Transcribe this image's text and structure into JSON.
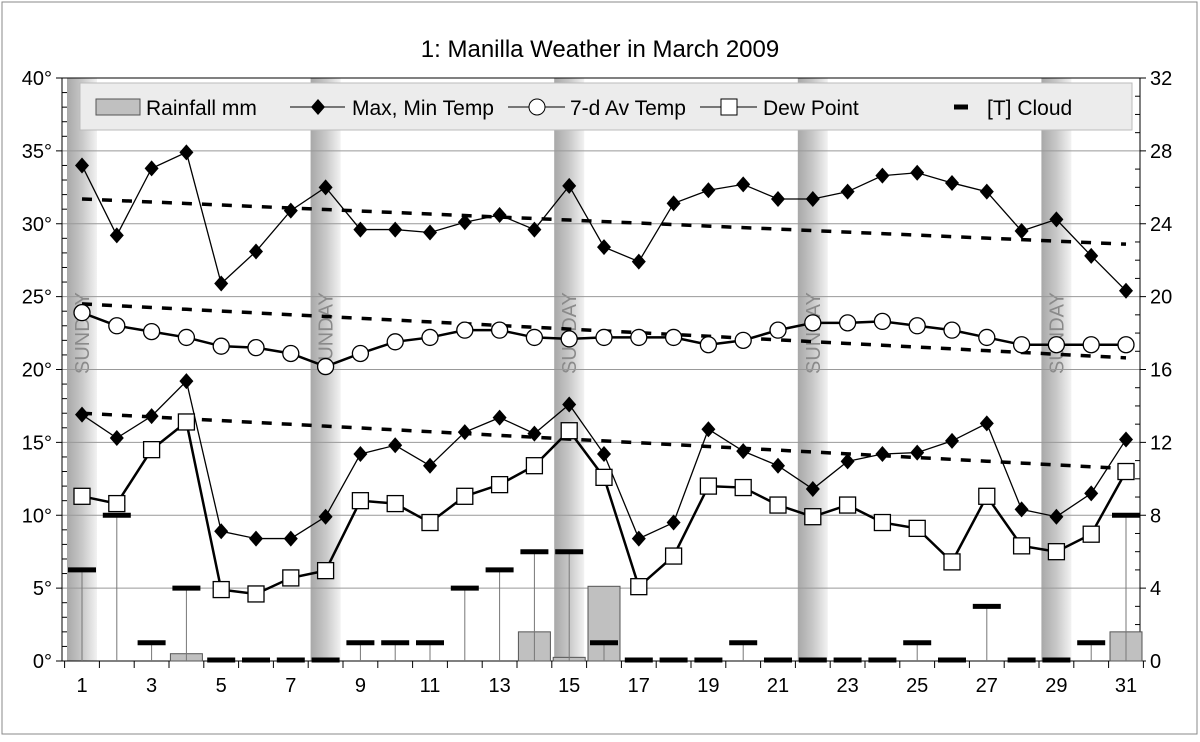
{
  "chart_data": {
    "type": "line",
    "title": "1: Manilla Weather in March 2009",
    "x": [
      1,
      2,
      3,
      4,
      5,
      6,
      7,
      8,
      9,
      10,
      11,
      12,
      13,
      14,
      15,
      16,
      17,
      18,
      19,
      20,
      21,
      22,
      23,
      24,
      25,
      26,
      27,
      28,
      29,
      30,
      31
    ],
    "x_tick_labels": [
      "1",
      "3",
      "5",
      "7",
      "9",
      "11",
      "13",
      "15",
      "17",
      "19",
      "21",
      "23",
      "25",
      "27",
      "29",
      "31"
    ],
    "y_left": {
      "range": [
        0,
        40
      ],
      "ticks": [
        "0°",
        "5°",
        "10°",
        "15°",
        "20°",
        "25°",
        "30°",
        "35°",
        "40°"
      ]
    },
    "y_right": {
      "range": [
        0,
        32
      ],
      "ticks": [
        "0",
        "4",
        "8",
        "12",
        "16",
        "20",
        "24",
        "28",
        "32"
      ]
    },
    "grid": true,
    "legend_position": "top",
    "sunday_label": "SUNDAY",
    "sundays": [
      1,
      8,
      15,
      22,
      29
    ],
    "series": [
      {
        "name": "Rainfall mm",
        "kind": "bar",
        "axis": "right",
        "values": [
          0,
          0,
          0,
          0.4,
          0,
          0,
          0,
          0,
          0,
          0,
          0,
          0,
          0,
          1.6,
          0.2,
          4.1,
          0,
          0,
          0,
          0,
          0,
          0,
          0,
          0,
          0,
          0,
          0,
          0,
          0,
          0,
          1.6
        ]
      },
      {
        "name": "Max, Min Temp",
        "kind": "line-diamond",
        "axis": "left",
        "max": [
          34.0,
          29.2,
          33.8,
          34.9,
          25.9,
          28.1,
          30.9,
          32.5,
          29.6,
          29.6,
          29.4,
          30.1,
          30.6,
          29.6,
          32.6,
          28.4,
          27.4,
          31.4,
          32.3,
          32.7,
          31.7,
          31.7,
          32.2,
          33.3,
          33.5,
          32.8,
          32.2,
          29.5,
          30.3,
          27.8,
          25.4
        ],
        "min": [
          16.9,
          15.3,
          16.8,
          19.2,
          8.9,
          8.4,
          8.4,
          9.9,
          14.2,
          14.8,
          13.4,
          15.7,
          16.7,
          15.6,
          17.6,
          14.2,
          8.4,
          9.5,
          15.9,
          14.4,
          13.4,
          11.8,
          13.7,
          14.2,
          14.3,
          15.1,
          16.3,
          10.4,
          9.9,
          11.5,
          15.2
        ]
      },
      {
        "name": "7-d Av Temp",
        "kind": "line-circle",
        "axis": "left",
        "values": [
          23.9,
          23.0,
          22.6,
          22.2,
          21.6,
          21.5,
          21.1,
          20.2,
          21.1,
          21.9,
          22.2,
          22.7,
          22.7,
          22.2,
          22.1,
          22.2,
          22.2,
          22.2,
          21.7,
          22.0,
          22.7,
          23.2,
          23.2,
          23.3,
          23.0,
          22.7,
          22.2,
          21.7,
          21.7,
          21.7,
          21.7
        ]
      },
      {
        "name": "Dew Point",
        "kind": "line-square",
        "axis": "left",
        "values": [
          11.3,
          10.8,
          14.5,
          16.4,
          4.9,
          4.6,
          5.7,
          6.2,
          11.0,
          10.8,
          9.5,
          11.3,
          12.1,
          13.4,
          15.8,
          12.6,
          5.1,
          7.2,
          12.0,
          11.9,
          10.7,
          9.9,
          10.7,
          9.5,
          9.1,
          6.8,
          11.3,
          7.9,
          7.5,
          8.7,
          13.0
        ]
      },
      {
        "name": "[T] Cloud",
        "kind": "dash",
        "axis": "right",
        "values": [
          5,
          8,
          1,
          4,
          0,
          0,
          0,
          0,
          1,
          1,
          1,
          4,
          5,
          6,
          6,
          1,
          0,
          0,
          0,
          1,
          0,
          0,
          0,
          0,
          1,
          0,
          3,
          0,
          0,
          1,
          8
        ]
      }
    ],
    "trends": [
      {
        "of": "max",
        "start": 31.7,
        "end": 28.6
      },
      {
        "of": "7-d avg",
        "start": 24.5,
        "end": 20.8
      },
      {
        "of": "min",
        "start": 17.0,
        "end": 13.2
      }
    ]
  }
}
